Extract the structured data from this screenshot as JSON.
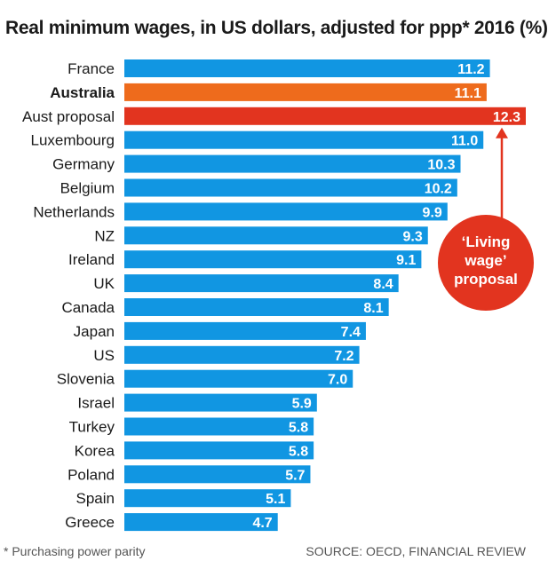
{
  "colors": {
    "default_bar": "#1196e2",
    "australia_bar": "#ee6b1c",
    "proposal_bar": "#e2341f",
    "callout": "#e2341f",
    "label_text": "#1a1a1a",
    "value_text": "#ffffff"
  },
  "chart_data": {
    "type": "bar",
    "orientation": "horizontal",
    "title": "Real minimum wages, in US dollars, adjusted for ppp* 2016 (%)",
    "categories": [
      "France",
      "Australia",
      "Aust proposal",
      "Luxembourg",
      "Germany",
      "Belgium",
      "Netherlands",
      "NZ",
      "Ireland",
      "UK",
      "Canada",
      "Japan",
      "US",
      "Slovenia",
      "Israel",
      "Turkey",
      "Korea",
      "Poland",
      "Spain",
      "Greece"
    ],
    "values": [
      11.2,
      11.1,
      12.3,
      11.0,
      10.3,
      10.2,
      9.9,
      9.3,
      9.1,
      8.4,
      8.1,
      7.4,
      7.2,
      7.0,
      5.9,
      5.8,
      5.8,
      5.7,
      5.1,
      4.7
    ],
    "value_labels": [
      "11.2",
      "11.1",
      "12.3",
      "11.0",
      "10.3",
      "10.2",
      "9.9",
      "9.3",
      "9.1",
      "8.4",
      "8.1",
      "7.4",
      "7.2",
      "7.0",
      "5.9",
      "5.8",
      "5.8",
      "5.7",
      "5.1",
      "4.7"
    ],
    "highlights": {
      "Australia": "australia",
      "Aust proposal": "proposal"
    },
    "bold_categories": [
      "Australia"
    ],
    "xlim": [
      0,
      12.3
    ],
    "grid": false,
    "legend": "none",
    "annotation": {
      "lines": [
        "‘Living",
        "wage’",
        "proposal"
      ],
      "points_to": "Aust proposal"
    }
  },
  "footer": {
    "note": "* Purchasing power parity",
    "source": "SOURCE: OECD, FINANCIAL REVIEW"
  }
}
